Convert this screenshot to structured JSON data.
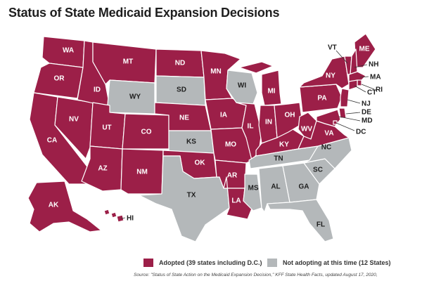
{
  "title": "Status of State Medicaid Expansion Decisions",
  "colors": {
    "adopted": "#9c1f48",
    "not_adopted": "#b4b8ba"
  },
  "legend": {
    "adopted": "Adopted (39 states including D.C.)",
    "not_adopted": "Not adopting at this time (12 States)"
  },
  "source": "Source: \"Status of State Action on the Medicaid Expansion Decision,\" KFF State Health Facts, updated August 17, 2020,",
  "states": {
    "WA": "adopted",
    "OR": "adopted",
    "CA": "adopted",
    "NV": "adopted",
    "ID": "adopted",
    "MT": "adopted",
    "WY": "not_adopted",
    "UT": "adopted",
    "AZ": "adopted",
    "CO": "adopted",
    "NM": "adopted",
    "ND": "adopted",
    "SD": "not_adopted",
    "NE": "adopted",
    "KS": "not_adopted",
    "OK": "adopted",
    "TX": "not_adopted",
    "MN": "adopted",
    "IA": "adopted",
    "MO": "adopted",
    "AR": "adopted",
    "LA": "adopted",
    "WI": "not_adopted",
    "IL": "adopted",
    "MS": "not_adopted",
    "MI": "adopted",
    "IN": "adopted",
    "KY": "adopted",
    "TN": "not_adopted",
    "AL": "not_adopted",
    "OH": "adopted",
    "WV": "adopted",
    "GA": "not_adopted",
    "FL": "not_adopted",
    "SC": "not_adopted",
    "NC": "not_adopted",
    "VA": "adopted",
    "PA": "adopted",
    "NY": "adopted",
    "ME": "adopted",
    "VT": "adopted",
    "NH": "adopted",
    "MA": "adopted",
    "RI": "adopted",
    "CT": "adopted",
    "NJ": "adopted",
    "DE": "adopted",
    "MD": "adopted",
    "DC": "adopted",
    "AK": "adopted",
    "HI": "adopted"
  }
}
